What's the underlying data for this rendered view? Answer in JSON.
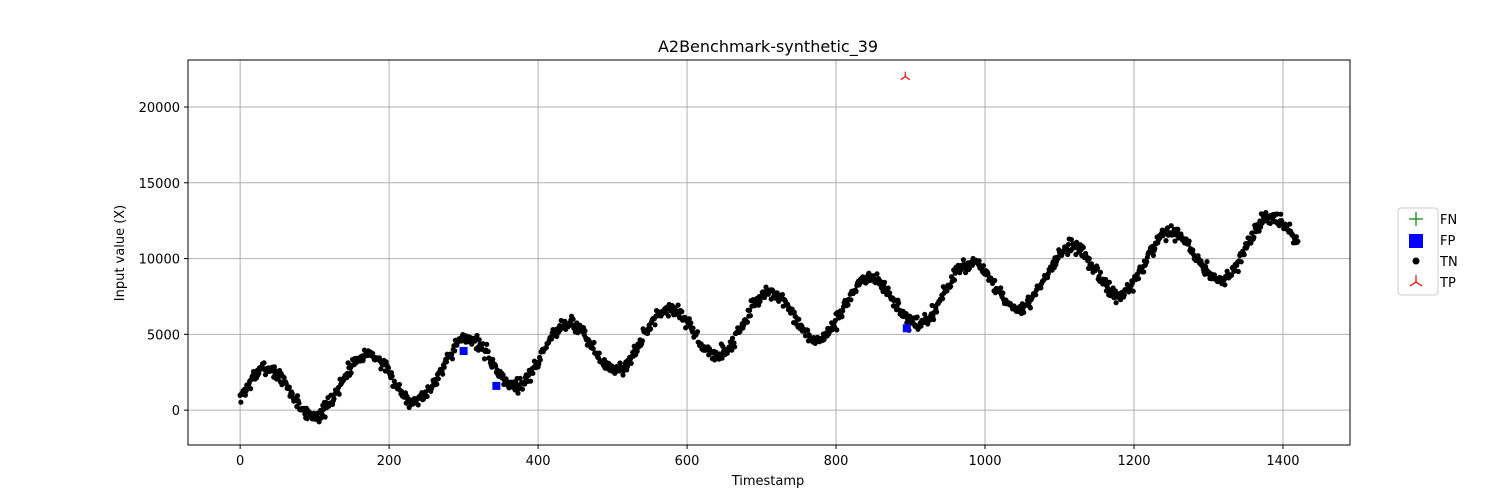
{
  "chart_data": {
    "type": "scatter",
    "title": "A2Benchmark-synthetic_39",
    "xlabel": "Timestamp",
    "ylabel": "Input value (X)",
    "xlim": [
      -70,
      1490
    ],
    "ylim": [
      -2300,
      23100
    ],
    "xticks": [
      0,
      200,
      400,
      600,
      800,
      1000,
      1200,
      1400
    ],
    "yticks": [
      0,
      5000,
      10000,
      15000,
      20000
    ],
    "grid": true,
    "legend": {
      "position": "right",
      "entries": [
        {
          "label": "FN",
          "marker": "plus",
          "color": "#008000"
        },
        {
          "label": "FP",
          "marker": "square",
          "color": "#0000ff"
        },
        {
          "label": "TN",
          "marker": "circle",
          "color": "#000000"
        },
        {
          "label": "TP",
          "marker": "tri_down",
          "color": "#ff0000"
        }
      ]
    },
    "series_model": {
      "name": "TN",
      "color": "#000000",
      "x_start": 0,
      "x_end": 1420,
      "trend_start": 700,
      "trend_slope": 7.4,
      "season_amplitude": 1800,
      "season_period": 135,
      "noise": 320
    },
    "series": [
      {
        "name": "FP",
        "color": "#0000ff",
        "points": [
          [
            300,
            3900
          ],
          [
            344,
            1600
          ],
          [
            895,
            5400
          ]
        ]
      },
      {
        "name": "TP",
        "color": "#ff0000",
        "points": [
          [
            893,
            22000
          ]
        ]
      },
      {
        "name": "FN",
        "color": "#008000",
        "points": []
      }
    ]
  }
}
